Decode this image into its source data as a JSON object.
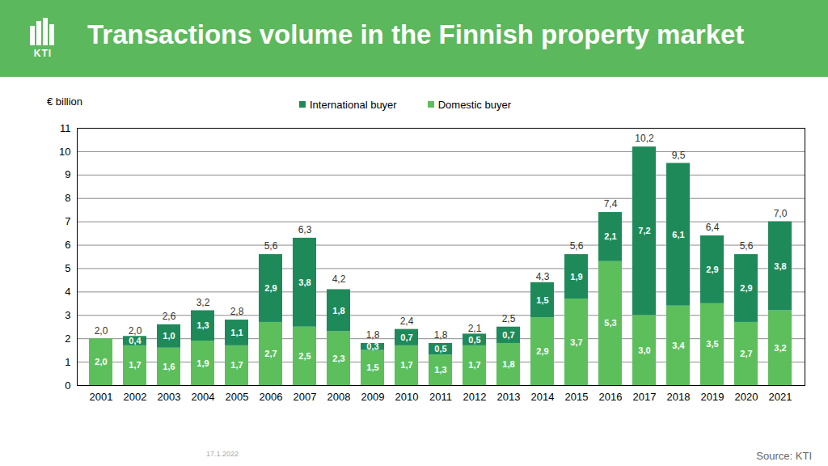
{
  "chart_data": {
    "type": "bar",
    "title": "Transactions volume in the Finnish property market",
    "y_label": "€ billion",
    "logo": "KTI",
    "date": "17.1.2022",
    "source": "Source: KTI",
    "categories": [
      "2001",
      "2002",
      "2003",
      "2004",
      "2005",
      "2006",
      "2007",
      "2008",
      "2009",
      "2010",
      "2011",
      "2012",
      "2013",
      "2014",
      "2015",
      "2016",
      "2017",
      "2018",
      "2019",
      "2020",
      "2021"
    ],
    "series": [
      {
        "name": "Domestic buyer",
        "color": "#5cbf5c",
        "values": [
          2.0,
          1.7,
          1.6,
          1.9,
          1.7,
          2.7,
          2.5,
          2.3,
          1.5,
          1.7,
          1.3,
          1.7,
          1.8,
          2.9,
          3.7,
          5.3,
          3.0,
          3.4,
          3.5,
          2.7,
          3.2
        ],
        "value_labels": [
          "2,0",
          "1,7",
          "1,6",
          "1,9",
          "1,7",
          "2,7",
          "2,5",
          "2,3",
          "1,5",
          "1,7",
          "1,3",
          "1,7",
          "1,8",
          "2,9",
          "3,7",
          "5,3",
          "3,0",
          "3,4",
          "3,5",
          "2,7",
          "3,2"
        ]
      },
      {
        "name": "International buyer",
        "color": "#1e8a5a",
        "values": [
          null,
          0.4,
          1.0,
          1.3,
          1.1,
          2.9,
          3.8,
          1.8,
          0.3,
          0.7,
          0.5,
          0.5,
          0.7,
          1.5,
          1.9,
          2.1,
          7.2,
          6.1,
          2.9,
          2.9,
          3.8
        ],
        "value_labels": [
          null,
          "0,4",
          "1,0",
          "1,3",
          "1,1",
          "2,9",
          "3,8",
          "1,8",
          "0,3",
          "0,7",
          "0,5",
          "0,5",
          "0,7",
          "1,5",
          "1,9",
          "2,1",
          "7,2",
          "6,1",
          "2,9",
          "2,9",
          "3,8"
        ]
      }
    ],
    "totals": [
      2.0,
      2.0,
      2.6,
      3.2,
      2.8,
      5.6,
      6.3,
      4.2,
      1.8,
      2.4,
      1.8,
      2.1,
      2.5,
      4.3,
      5.6,
      7.4,
      10.2,
      9.5,
      6.4,
      5.6,
      7.0
    ],
    "total_labels": [
      "2,0",
      "2,0",
      "2,6",
      "3,2",
      "2,8",
      "5,6",
      "6,3",
      "4,2",
      "1,8",
      "2,4",
      "1,8",
      "2,1",
      "2,5",
      "4,3",
      "5,6",
      "7,4",
      "10,2",
      "9,5",
      "6,4",
      "5,6",
      "7,0"
    ],
    "ylim": [
      0,
      11
    ],
    "yticks": [
      0,
      1,
      2,
      3,
      4,
      5,
      6,
      7,
      8,
      9,
      10,
      11
    ],
    "grid": true,
    "stacked": true,
    "data_labels": true,
    "legend": "top"
  }
}
